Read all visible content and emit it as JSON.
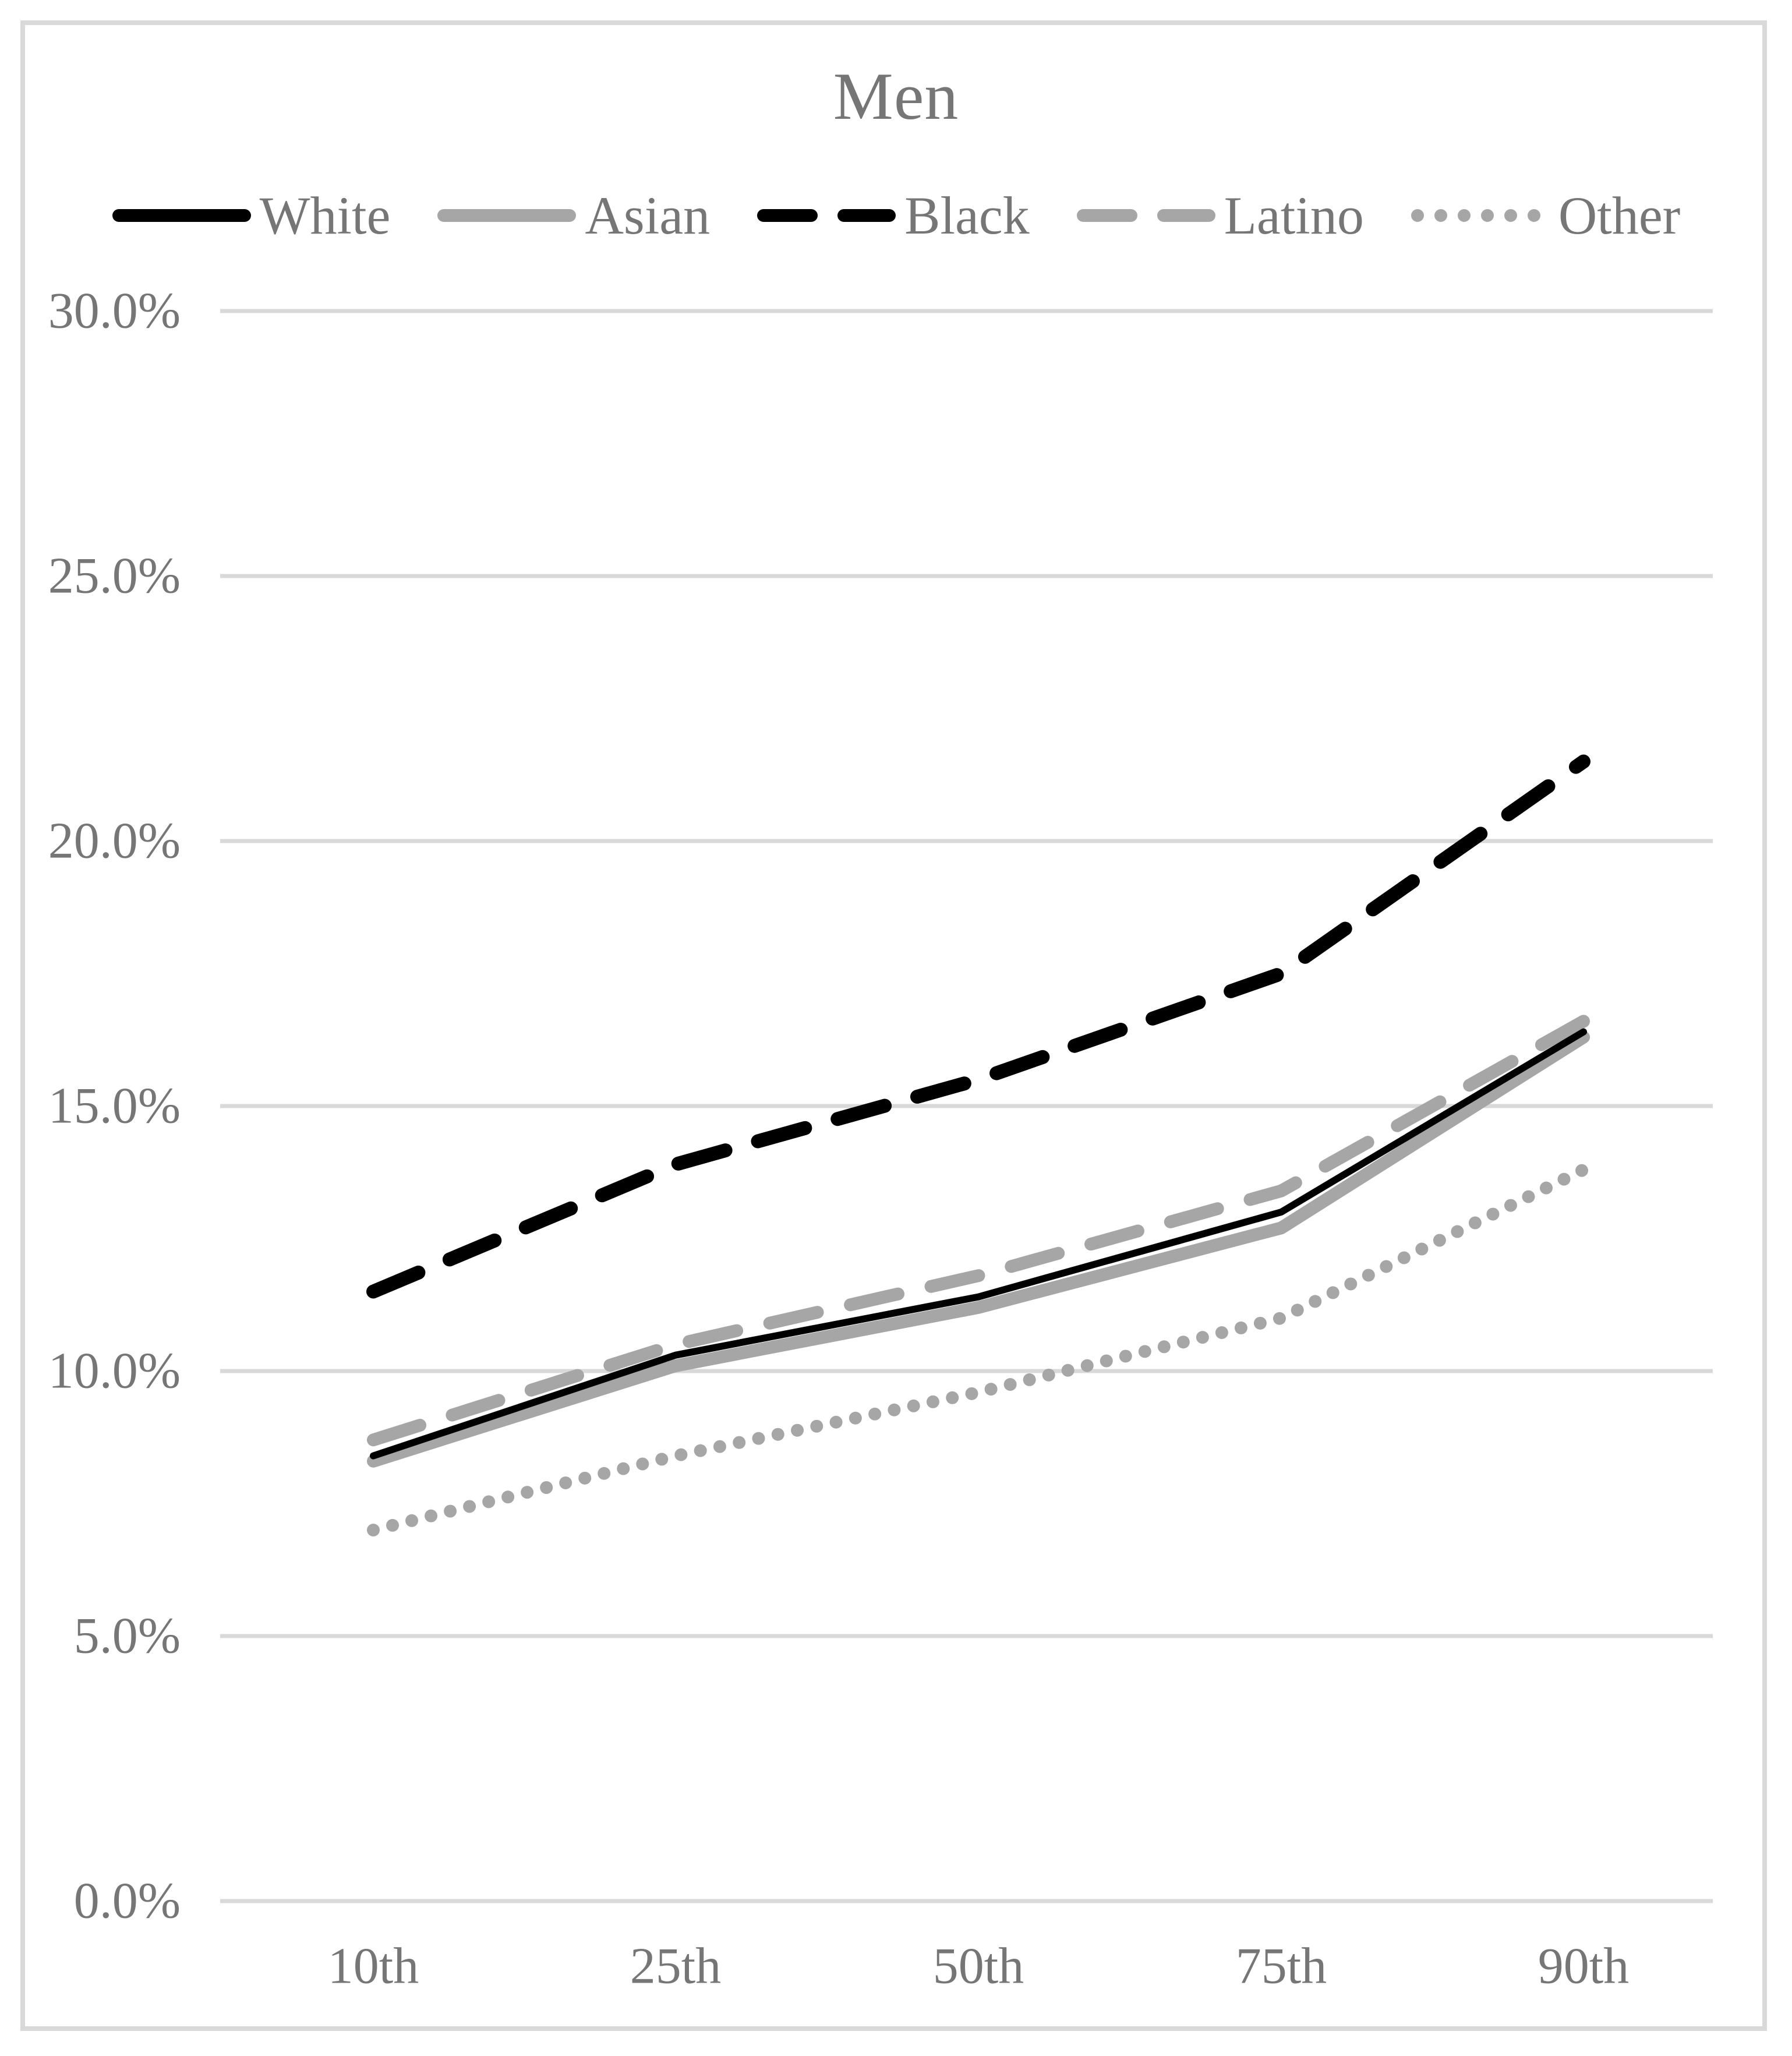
{
  "page": {
    "title": "Men"
  },
  "chart_data": {
    "type": "line",
    "title": "Men",
    "categories": [
      "10th",
      "25th",
      "50th",
      "75th",
      "90th"
    ],
    "series": [
      {
        "name": "White",
        "values": [
          8.4,
          10.3,
          11.4,
          13.0,
          16.4
        ],
        "color": "#000000",
        "style": "solid",
        "width": 12
      },
      {
        "name": "Asian",
        "values": [
          8.3,
          10.1,
          11.2,
          12.7,
          16.3
        ],
        "color": "#a6a6a6",
        "style": "solid",
        "width": 22
      },
      {
        "name": "Black",
        "values": [
          11.5,
          13.9,
          15.5,
          17.5,
          21.5
        ],
        "color": "#000000",
        "style": "dashed",
        "width": 24
      },
      {
        "name": "Latino",
        "values": [
          8.7,
          10.5,
          11.8,
          13.4,
          16.6
        ],
        "color": "#a6a6a6",
        "style": "dashed",
        "width": 22
      },
      {
        "name": "Other",
        "values": [
          7.0,
          8.4,
          9.6,
          11.0,
          13.8
        ],
        "color": "#a6a6a6",
        "style": "dotted",
        "width": 22
      }
    ],
    "xlabel": "",
    "ylabel": "",
    "ylim": [
      0,
      30
    ],
    "ytick_step": 5,
    "ytick_labels": [
      "0.0%",
      "5.0%",
      "10.0%",
      "15.0%",
      "20.0%",
      "25.0%",
      "30.0%"
    ],
    "grid": true,
    "legend_position": "top"
  },
  "colors": {
    "gridline": "#d9d9d9",
    "frame_border": "#d9d9d9",
    "axis_text": "#767676",
    "title_text": "#767676"
  }
}
